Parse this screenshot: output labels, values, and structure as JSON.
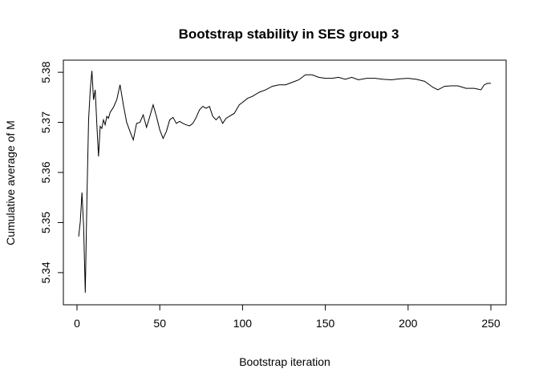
{
  "chart_data": {
    "type": "line",
    "title": "Bootstrap stability in SES group 3",
    "xlabel": "Bootstrap iteration",
    "ylabel": "Cumulative average of M",
    "xlim": [
      0,
      250
    ],
    "ylim": [
      5.3355,
      5.3805
    ],
    "x_ticks": [
      0,
      50,
      100,
      150,
      200,
      250
    ],
    "y_ticks": [
      5.34,
      5.35,
      5.36,
      5.37,
      5.38
    ],
    "x_tick_labels": [
      "0",
      "50",
      "100",
      "150",
      "200",
      "250"
    ],
    "y_tick_labels": [
      "5.34",
      "5.35",
      "5.36",
      "5.37",
      "5.38"
    ],
    "grid": false,
    "legend": "none",
    "line_color": "#000000",
    "series": [
      {
        "x": [
          1,
          2,
          3,
          4,
          5,
          6,
          7,
          8,
          9,
          10,
          11,
          12,
          13,
          14,
          15,
          16,
          17,
          18,
          19,
          20,
          22,
          24,
          26,
          28,
          30,
          32,
          34,
          36,
          38,
          40,
          42,
          44,
          46,
          48,
          50,
          52,
          54,
          56,
          58,
          60,
          62,
          64,
          66,
          68,
          70,
          72,
          74,
          76,
          78,
          80,
          82,
          84,
          86,
          88,
          90,
          92,
          95,
          98,
          100,
          103,
          106,
          110,
          114,
          118,
          122,
          126,
          130,
          134,
          138,
          142,
          146,
          150,
          154,
          158,
          162,
          166,
          170,
          175,
          180,
          185,
          190,
          195,
          200,
          205,
          210,
          215,
          218,
          222,
          226,
          230,
          235,
          240,
          244,
          246,
          248,
          250
        ],
        "values": [
          5.3472,
          5.3502,
          5.356,
          5.3492,
          5.336,
          5.3548,
          5.3705,
          5.3765,
          5.3803,
          5.3745,
          5.3765,
          5.3695,
          5.3632,
          5.3692,
          5.3688,
          5.3705,
          5.3695,
          5.3712,
          5.3708,
          5.372,
          5.373,
          5.3745,
          5.3775,
          5.3735,
          5.37,
          5.3682,
          5.3665,
          5.3698,
          5.37,
          5.3715,
          5.369,
          5.3712,
          5.3735,
          5.3712,
          5.3685,
          5.3668,
          5.3682,
          5.3705,
          5.371,
          5.3698,
          5.3702,
          5.3698,
          5.3695,
          5.3693,
          5.3698,
          5.371,
          5.3725,
          5.3732,
          5.3728,
          5.3732,
          5.3712,
          5.3705,
          5.3712,
          5.3698,
          5.3708,
          5.3712,
          5.3718,
          5.3735,
          5.374,
          5.3748,
          5.3752,
          5.376,
          5.3765,
          5.3772,
          5.3775,
          5.3775,
          5.378,
          5.3785,
          5.3795,
          5.3795,
          5.379,
          5.3788,
          5.3788,
          5.379,
          5.3786,
          5.379,
          5.3785,
          5.3788,
          5.3788,
          5.3786,
          5.3785,
          5.3787,
          5.3788,
          5.3786,
          5.3782,
          5.377,
          5.3765,
          5.3772,
          5.3773,
          5.3773,
          5.3768,
          5.3768,
          5.3765,
          5.3775,
          5.3778,
          5.3778
        ]
      }
    ]
  }
}
